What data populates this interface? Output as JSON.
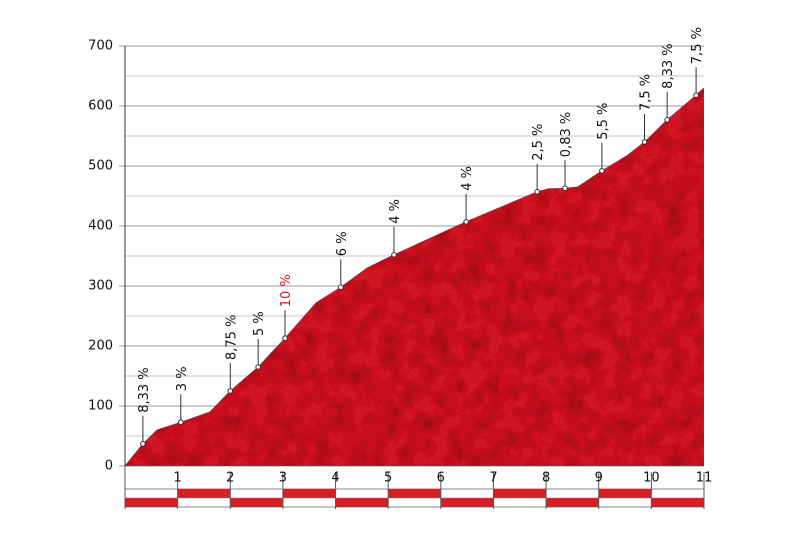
{
  "chart_data": {
    "type": "area",
    "x": [
      0,
      0.34,
      0.61,
      1.06,
      1.61,
      2.0,
      2.53,
      3.04,
      3.63,
      4.1,
      4.6,
      5.11,
      6.48,
      7.83,
      8.04,
      8.36,
      8.6,
      9.06,
      9.55,
      9.87,
      10.3,
      10.85,
      11
    ],
    "values": [
      0,
      37,
      60,
      73,
      90,
      125,
      165,
      213,
      272,
      298,
      330,
      352,
      407,
      457,
      462,
      463,
      465,
      492,
      518,
      540,
      577,
      618,
      630
    ],
    "color": "#cf1620",
    "xlim": [
      0,
      11
    ],
    "xticks": [
      1,
      2,
      3,
      4,
      5,
      6,
      7,
      8,
      9,
      10,
      11
    ],
    "ylim": [
      0,
      700
    ],
    "yticks": [
      0,
      100,
      200,
      300,
      400,
      500,
      600,
      700
    ],
    "minor_yticks": [
      50,
      150,
      250,
      350,
      450,
      550,
      650
    ],
    "grid": true,
    "annotations": [
      {
        "x": 0.34,
        "y": 37,
        "label": "8,33 %",
        "color": "#111111"
      },
      {
        "x": 1.06,
        "y": 73,
        "label": "3 %",
        "color": "#111111"
      },
      {
        "x": 2.0,
        "y": 125,
        "label": "8,75 %",
        "color": "#111111"
      },
      {
        "x": 2.53,
        "y": 165,
        "label": "5 %",
        "color": "#111111"
      },
      {
        "x": 3.04,
        "y": 213,
        "label": "10 %",
        "color": "#d11a1a"
      },
      {
        "x": 4.1,
        "y": 298,
        "label": "6 %",
        "color": "#111111"
      },
      {
        "x": 5.11,
        "y": 352,
        "label": "4 %",
        "color": "#111111"
      },
      {
        "x": 6.48,
        "y": 407,
        "label": "4 %",
        "color": "#111111"
      },
      {
        "x": 7.83,
        "y": 457,
        "label": "2,5 %",
        "color": "#111111"
      },
      {
        "x": 8.36,
        "y": 463,
        "label": "0,83 %",
        "color": "#111111"
      },
      {
        "x": 9.06,
        "y": 492,
        "label": "5,5 %",
        "color": "#111111"
      },
      {
        "x": 9.87,
        "y": 540,
        "label": "7,5 %",
        "color": "#111111"
      },
      {
        "x": 10.3,
        "y": 577,
        "label": "8,33 %",
        "color": "#111111"
      },
      {
        "x": 10.85,
        "y": 618,
        "label": "7,5 %",
        "color": "#111111"
      }
    ]
  }
}
